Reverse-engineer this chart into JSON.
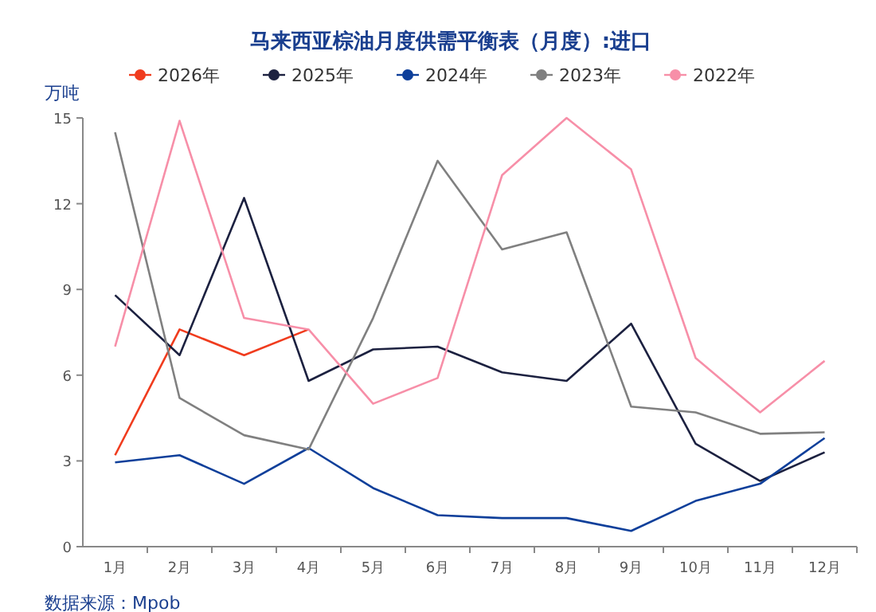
{
  "chart_data": {
    "type": "line",
    "title": "马来西亚棕油月度供需平衡表（月度）:进口",
    "ylabel": "万吨",
    "categories": [
      "1月",
      "2月",
      "3月",
      "4月",
      "5月",
      "6月",
      "7月",
      "8月",
      "9月",
      "10月",
      "11月",
      "12月"
    ],
    "series": [
      {
        "name": "2026年",
        "color": "#f03c1e",
        "values": [
          3.2,
          7.6,
          6.7,
          7.6,
          null,
          null,
          null,
          null,
          null,
          null,
          null,
          null
        ]
      },
      {
        "name": "2025年",
        "color": "#1c2140",
        "values": [
          8.8,
          6.7,
          12.2,
          5.8,
          6.9,
          7.0,
          6.1,
          5.8,
          7.8,
          3.6,
          2.3,
          3.3
        ]
      },
      {
        "name": "2024年",
        "color": "#0e3f9a",
        "values": [
          2.95,
          3.2,
          2.2,
          3.45,
          2.05,
          1.1,
          1.0,
          1.0,
          0.55,
          1.6,
          2.2,
          3.8
        ]
      },
      {
        "name": "2023年",
        "color": "#808080",
        "values": [
          14.5,
          5.2,
          3.9,
          3.4,
          8.0,
          13.5,
          10.4,
          11.0,
          4.9,
          4.7,
          3.95,
          4.0
        ]
      },
      {
        "name": "2022年",
        "color": "#f78fa8",
        "values": [
          7.0,
          14.9,
          8.0,
          7.6,
          5.0,
          5.9,
          13.0,
          15.0,
          13.2,
          6.6,
          4.7,
          6.5
        ]
      }
    ],
    "ylim": [
      0,
      15
    ],
    "yticks": [
      0,
      3,
      6,
      9,
      12,
      15
    ],
    "grid": false,
    "legend": "top",
    "marker": "none",
    "line_style": "solid",
    "annotations": [
      "数据来源：Mpob"
    ]
  }
}
